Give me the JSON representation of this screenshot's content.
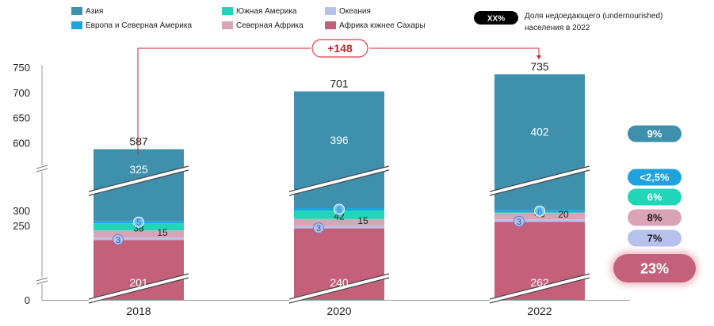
{
  "chart_data": {
    "type": "bar",
    "stacked": true,
    "categories": [
      "2018",
      "2020",
      "2022"
    ],
    "totals": [
      "587",
      "701",
      "735"
    ],
    "y_ticks": [
      "750",
      "700",
      "650",
      "600",
      "300",
      "250",
      "0"
    ],
    "axis_break": true,
    "series": [
      {
        "name": "Африка южнее Сахары",
        "color": "#c4607a",
        "values": [
          201,
          240,
          262
        ],
        "labels": [
          "201",
          "240",
          "262"
        ]
      },
      {
        "name": "Океания",
        "color": "#b7c2ec",
        "values": [
          3,
          3,
          3
        ],
        "labels": [
          "3",
          "3",
          "3"
        ]
      },
      {
        "name": "Северная Африка",
        "color": "#dba4b6",
        "values": [
          15,
          15,
          20
        ],
        "labels": [
          "15",
          "15",
          "20"
        ]
      },
      {
        "name": "Южная Америка",
        "color": "#21d5b8",
        "values": [
          38,
          42,
          43
        ],
        "labels": [
          "38",
          "42",
          "43"
        ]
      },
      {
        "name": "Европа и Северная Америка",
        "color": "#1fa3df",
        "values": [
          5,
          6,
          6
        ],
        "labels": [
          "5",
          "6",
          "6"
        ]
      },
      {
        "name": "Азия",
        "color": "#3e90ad",
        "values": [
          325,
          396,
          402
        ],
        "labels": [
          "325",
          "396",
          "402"
        ]
      }
    ],
    "legend": {
      "items": [
        "Азия",
        "Европа и Северная Америка",
        "Южная Америка",
        "Северная Африка",
        "Океания",
        "Африка южнее Сахары"
      ],
      "badge_text": "XX%",
      "badge_caption_line1": "Доля недоедающего (undernourished)",
      "badge_caption_line2": "населения  в 2022"
    },
    "annotation": {
      "text": "+148",
      "from": "2018",
      "to": "2022"
    },
    "share_2022": [
      {
        "region": "Азия",
        "text": "9%",
        "color": "#3e90ad",
        "text_color": "#ffffff"
      },
      {
        "region": "Европа и Северная Америка",
        "text": "<2,5%",
        "color": "#1fa3df",
        "text_color": "#ffffff"
      },
      {
        "region": "Южная Америка",
        "text": "6%",
        "color": "#21d5b8",
        "text_color": "#ffffff"
      },
      {
        "region": "Северная Африка",
        "text": "8%",
        "color": "#dba4b6",
        "text_color": "#1a1a1a"
      },
      {
        "region": "Океания",
        "text": "7%",
        "color": "#b7c2ec",
        "text_color": "#1a1a1a"
      },
      {
        "region": "Африка южнее Сахары",
        "text": "23%",
        "color": "#c4607a",
        "text_color": "#ffffff"
      }
    ]
  }
}
